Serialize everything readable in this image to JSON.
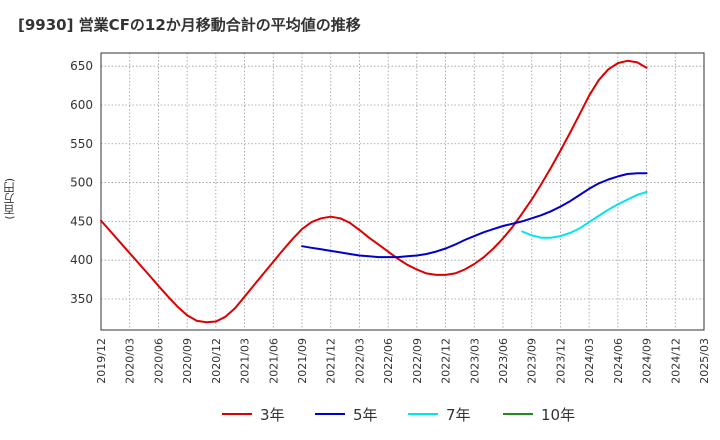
{
  "chart_data": {
    "type": "line",
    "title": "[9930]  営業CFの12か月移動合計の平均値の推移",
    "ylabel": "(百万円)",
    "xlabel": "",
    "ylim": [
      310,
      667
    ],
    "yticks": [
      350,
      400,
      450,
      500,
      550,
      600,
      650
    ],
    "grid": true,
    "legend_position": "bottom",
    "x_tick_labels": [
      "2019/12",
      "2020/03",
      "2020/06",
      "2020/09",
      "2020/12",
      "2021/03",
      "2021/06",
      "2021/09",
      "2021/12",
      "2022/03",
      "2022/06",
      "2022/09",
      "2022/12",
      "2023/03",
      "2023/06",
      "2023/09",
      "2023/12",
      "2024/03",
      "2024/06",
      "2024/09",
      "2024/12",
      "2025/03"
    ],
    "series": [
      {
        "name": "3年",
        "color": "#dd0000",
        "x": [
          "2019/12",
          "2020/01",
          "2020/02",
          "2020/03",
          "2020/04",
          "2020/05",
          "2020/06",
          "2020/07",
          "2020/08",
          "2020/09",
          "2020/10",
          "2020/11",
          "2020/12",
          "2021/01",
          "2021/02",
          "2021/03",
          "2021/04",
          "2021/05",
          "2021/06",
          "2021/07",
          "2021/08",
          "2021/09",
          "2021/10",
          "2021/11",
          "2021/12",
          "2022/01",
          "2022/02",
          "2022/03",
          "2022/04",
          "2022/05",
          "2022/06",
          "2022/07",
          "2022/08",
          "2022/09",
          "2022/10",
          "2022/11",
          "2022/12",
          "2023/01",
          "2023/02",
          "2023/03",
          "2023/04",
          "2023/05",
          "2023/06",
          "2023/07",
          "2023/08",
          "2023/09",
          "2023/10",
          "2023/11",
          "2023/12",
          "2024/01",
          "2024/02",
          "2024/03",
          "2024/04",
          "2024/05",
          "2024/06",
          "2024/07",
          "2024/08",
          "2024/09"
        ],
        "values": [
          451,
          437,
          423,
          409,
          395,
          381,
          367,
          353,
          340,
          329,
          322,
          320,
          321,
          327,
          338,
          353,
          368,
          383,
          398,
          413,
          427,
          440,
          449,
          454,
          456,
          454,
          448,
          439,
          429,
          420,
          411,
          402,
          394,
          388,
          383,
          381,
          381,
          383,
          388,
          395,
          404,
          415,
          428,
          443,
          460,
          478,
          498,
          519,
          541,
          564,
          588,
          612,
          632,
          646,
          654,
          657,
          655,
          648
        ]
      },
      {
        "name": "5年",
        "color": "#0000cc",
        "x": [
          "2021/09",
          "2021/10",
          "2021/11",
          "2021/12",
          "2022/01",
          "2022/02",
          "2022/03",
          "2022/04",
          "2022/05",
          "2022/06",
          "2022/07",
          "2022/08",
          "2022/09",
          "2022/10",
          "2022/11",
          "2022/12",
          "2023/01",
          "2023/02",
          "2023/03",
          "2023/04",
          "2023/05",
          "2023/06",
          "2023/07",
          "2023/08",
          "2023/09",
          "2023/10",
          "2023/11",
          "2023/12",
          "2024/01",
          "2024/02",
          "2024/03",
          "2024/04",
          "2024/05",
          "2024/06",
          "2024/07",
          "2024/08",
          "2024/09"
        ],
        "values": [
          418,
          416,
          414,
          412,
          410,
          408,
          406,
          405,
          404,
          404,
          404,
          405,
          406,
          408,
          411,
          415,
          420,
          426,
          431,
          436,
          440,
          444,
          447,
          450,
          454,
          458,
          463,
          469,
          476,
          484,
          492,
          499,
          504,
          508,
          511,
          512,
          512
        ]
      },
      {
        "name": "7年",
        "color": "#00e5ee",
        "x": [
          "2023/08",
          "2023/09",
          "2023/10",
          "2023/11",
          "2023/12",
          "2024/01",
          "2024/02",
          "2024/03",
          "2024/04",
          "2024/05",
          "2024/06",
          "2024/07",
          "2024/08",
          "2024/09"
        ],
        "values": [
          437,
          432,
          429,
          429,
          431,
          435,
          441,
          449,
          457,
          465,
          472,
          478,
          484,
          488
        ]
      },
      {
        "name": "10年",
        "color": "#228b22",
        "x": [],
        "values": []
      }
    ]
  }
}
